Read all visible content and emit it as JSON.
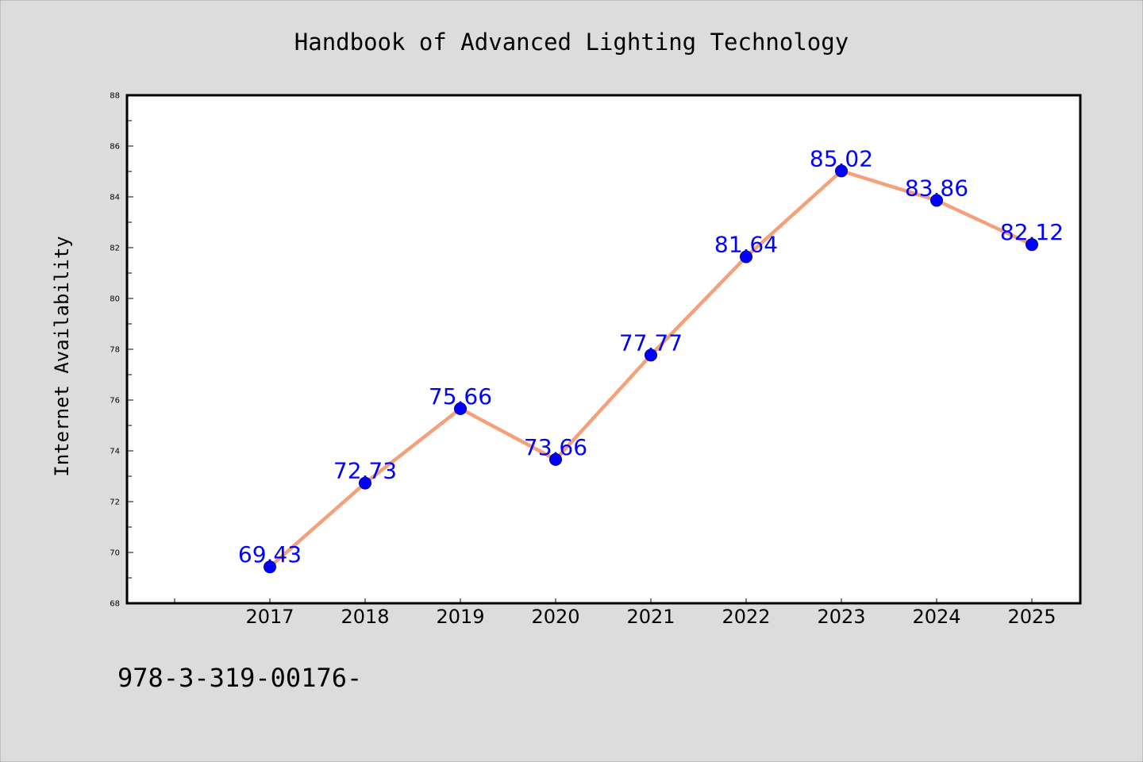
{
  "chart_data": {
    "type": "line",
    "title": "Handbook of Advanced Lighting Technology",
    "xlabel": "",
    "ylabel": "Internet Availability",
    "footer_text": "978-3-319-00176-",
    "categories": [
      "2017",
      "2018",
      "2019",
      "2020",
      "2021",
      "2022",
      "2023",
      "2024",
      "2025"
    ],
    "series": [
      {
        "values": [
          69.43,
          72.73,
          75.66,
          73.66,
          77.77,
          81.64,
          85.02,
          83.86,
          82.12
        ],
        "labels": [
          "69.43",
          "72.73",
          "75.66",
          "73.66",
          "77.77",
          "81.64",
          "85.02",
          "83.86",
          "82.12"
        ]
      }
    ],
    "ylim": [
      68,
      88
    ],
    "y_ticks": [
      "68",
      "70",
      "72",
      "74",
      "76",
      "78",
      "80",
      "82",
      "84",
      "86",
      "88"
    ],
    "grid": false,
    "legend": "none",
    "colors": {
      "page_background": "#dcdcdc",
      "plot_background": "#ffffff",
      "line": "#f4a07a",
      "marker": "#0000ff",
      "data_label": "#0000ff",
      "axis": "#000000",
      "text": "#000000"
    }
  }
}
